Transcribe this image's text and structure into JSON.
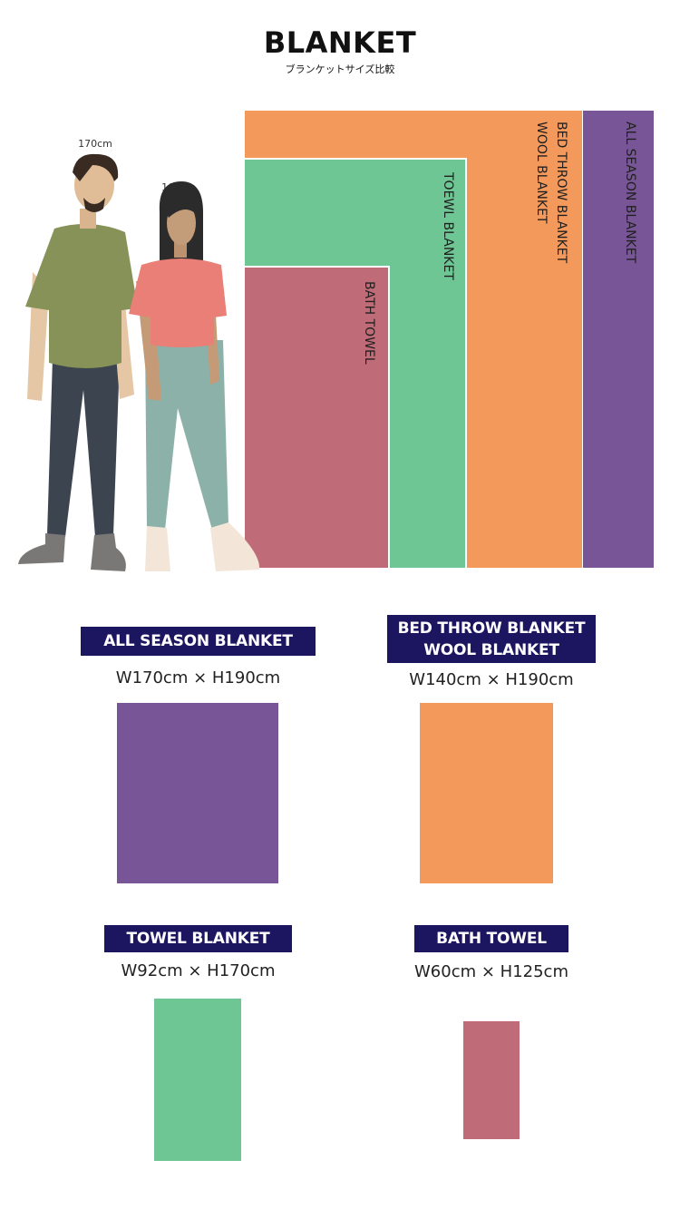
{
  "header": {
    "title": "BLANKET",
    "subtitle": "ブランケットサイズ比較"
  },
  "figures": {
    "man_height": "170cm",
    "woman_height": "160cm"
  },
  "comparison": {
    "all_season": "ALL SEASON  BLANKET",
    "bed_throw_line1": "BED THROW BLANKET",
    "bed_throw_line2": "WOOL BLANKET",
    "towel_blanket": "TOEWL BLANKET",
    "bath_towel": "BATH TOWEL"
  },
  "products": [
    {
      "name": "ALL SEASON BLANKET",
      "size": "W170cm × H190cm",
      "color": "#785597"
    },
    {
      "name_line1": "BED THROW BLANKET",
      "name_line2": "WOOL BLANKET",
      "size": "W140cm × H190cm",
      "color": "#f4995c"
    },
    {
      "name": "TOWEL BLANKET",
      "size": "W92cm × H170cm",
      "color": "#6dc693"
    },
    {
      "name": "BATH TOWEL",
      "size": "W60cm × H125cm",
      "color": "#c06c78"
    }
  ],
  "colors": {
    "purple": "#785597",
    "orange": "#f4995c",
    "green": "#6dc693",
    "rose": "#c06c78",
    "badge": "#1c1660"
  }
}
